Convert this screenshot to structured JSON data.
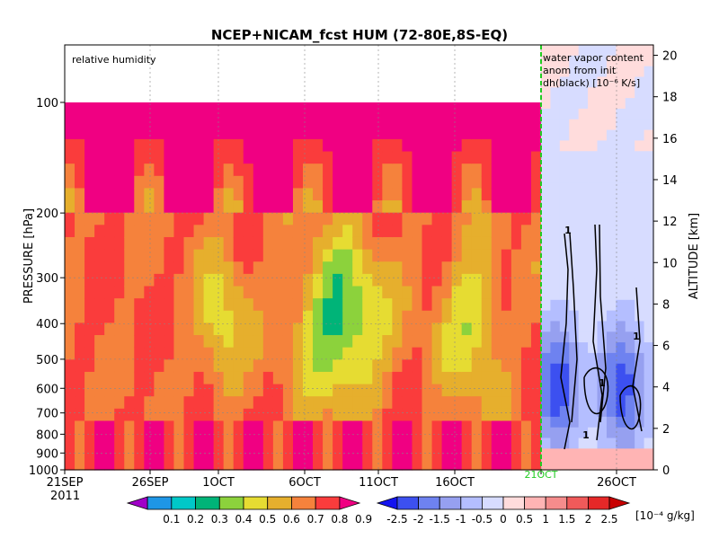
{
  "chart_data": {
    "type": "heatmap",
    "title": "NCEP+NICAM_fcst HUM (72-80E,8S-EQ)",
    "left_panel_label": "relative humidity",
    "right_panel_label_lines": [
      "water vapor content",
      "anom from init",
      "dh(black) [10⁻⁶ K/s]"
    ],
    "ylabel": "PRESSURE [hPa]",
    "y2label": "ALTITUDE [km]",
    "pressure_ticks": [
      "100",
      "200",
      "300",
      "400",
      "500",
      "600",
      "700",
      "800",
      "900",
      "1000"
    ],
    "altitude_ticks": [
      "0",
      "2",
      "4",
      "6",
      "8",
      "10",
      "12",
      "14",
      "16",
      "18",
      "20"
    ],
    "x_ticks": [
      "21SEP",
      "26SEP",
      "1OCT",
      "6OCT",
      "11OCT",
      "16OCT",
      "21OCT",
      "26OCT"
    ],
    "x_year": "2011",
    "split_date_label": "21OCT",
    "contour_label": "1",
    "colorbar_rh": {
      "labels": [
        "0.1",
        "0.2",
        "0.3",
        "0.4",
        "0.5",
        "0.6",
        "0.7",
        "0.8",
        "0.9"
      ],
      "colors": [
        "#a000c8",
        "#1e96e6",
        "#00c8c8",
        "#00b478",
        "#8cd23c",
        "#e6dc32",
        "#e6af2d",
        "#f5823c",
        "#fa3c3c",
        "#f00082"
      ]
    },
    "colorbar_anom": {
      "labels": [
        "-2.5",
        "-2",
        "-1.5",
        "-1",
        "-0.5",
        "0",
        "0.5",
        "1",
        "1.5",
        "2",
        "2.5"
      ],
      "unit": "[10⁻⁴ g/kg]",
      "colors": [
        "#1414f0",
        "#3c50f0",
        "#6e82f0",
        "#96a0f0",
        "#b4beff",
        "#d7dcff",
        "#ffdcdc",
        "#ffb4b4",
        "#f58c8c",
        "#f05a5a",
        "#e62828",
        "#c80000"
      ]
    }
  }
}
